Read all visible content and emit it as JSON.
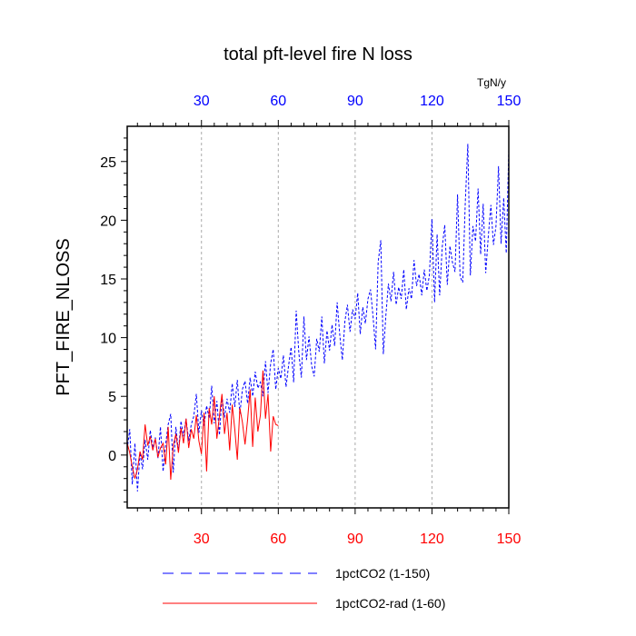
{
  "chart_data": {
    "type": "line",
    "title": "total pft-level fire N loss",
    "units": "TgN/y",
    "ylabel": "PFT_FIRE_NLOSS",
    "xlabel": "",
    "xlim": [
      1,
      150
    ],
    "ylim": [
      -4.5,
      28
    ],
    "x_ticks": [
      30,
      60,
      90,
      120,
      150
    ],
    "y_ticks": [
      0,
      5,
      10,
      15,
      20,
      25
    ],
    "grid": "vertical dashed at x ticks",
    "colors": {
      "top_axis": "#0000ff",
      "bottom_axis": "#ff0000",
      "series1": "#0000ff",
      "series2": "#ff0000"
    },
    "series": [
      {
        "name": "1pctCO2 (1-150)",
        "style": "dashed",
        "color": "#0000ff",
        "x_start": 1,
        "values": [
          0.5,
          2.2,
          -2.5,
          1.0,
          -3.1,
          0.2,
          -1.2,
          1.3,
          -0.4,
          2.1,
          0.6,
          1.5,
          -0.3,
          2.4,
          -1.4,
          0.9,
          2.6,
          3.5,
          -1.5,
          2.4,
          0.3,
          2.9,
          1.6,
          3.1,
          1.2,
          2.6,
          3.3,
          5.2,
          1.9,
          3.8,
          2.5,
          4.2,
          3.1,
          5.9,
          2.7,
          4.6,
          1.7,
          5.0,
          3.2,
          4.8,
          3.6,
          6.1,
          4.1,
          6.4,
          3.5,
          5.6,
          6.3,
          4.4,
          6.6,
          5.0,
          7.1,
          5.7,
          6.2,
          5.0,
          8.0,
          5.3,
          7.8,
          9.0,
          5.6,
          7.4,
          6.5,
          8.5,
          5.8,
          7.6,
          9.2,
          6.2,
          12.3,
          8.7,
          6.6,
          11.8,
          8.1,
          10.1,
          7.6,
          6.7,
          9.9,
          8.8,
          11.8,
          7.8,
          10.6,
          8.9,
          11.1,
          9.3,
          13.0,
          10.2,
          8.1,
          11.4,
          12.8,
          10.5,
          12.4,
          11.6,
          13.8,
          10.3,
          12.6,
          11.2,
          13.3,
          14.1,
          11.8,
          9.0,
          16.4,
          18.3,
          8.6,
          11.9,
          14.6,
          13.1,
          15.6,
          12.8,
          14.3,
          13.3,
          15.8,
          12.4,
          14.2,
          13.3,
          16.6,
          14.4,
          15.4,
          13.6,
          15.8,
          14.0,
          15.3,
          20.1,
          13.0,
          18.8,
          13.6,
          17.7,
          19.6,
          14.5,
          17.8,
          16.4,
          15.6,
          22.2,
          15.2,
          14.7,
          21.5,
          26.5,
          15.3,
          19.5,
          18.2,
          22.7,
          17.1,
          21.4,
          15.5,
          18.6,
          21.3,
          17.9,
          19.5,
          24.6,
          18.0,
          21.9,
          17.2,
          26.0
        ]
      },
      {
        "name": "1pctCO2-rad (1-60)",
        "style": "solid",
        "color": "#ff0000",
        "x_start": 1,
        "values": [
          1.0,
          0.2,
          -1.0,
          -2.0,
          -1.2,
          0.3,
          -0.4,
          2.6,
          0.8,
          1.6,
          0.4,
          1.4,
          -0.2,
          0.6,
          1.0,
          -0.8,
          2.4,
          -2.1,
          0.8,
          1.8,
          0.2,
          2.3,
          1.0,
          3.1,
          0.6,
          2.2,
          1.4,
          3.4,
          1.2,
          0.1,
          3.6,
          -1.4,
          4.0,
          2.6,
          5.0,
          1.4,
          3.3,
          5.2,
          1.8,
          3.6,
          0.4,
          4.3,
          2.2,
          -0.4,
          4.0,
          2.8,
          0.9,
          3.0,
          5.6,
          0.7,
          4.9,
          2.0,
          3.4,
          7.2,
          3.1,
          5.2,
          0.3,
          3.3,
          2.6,
          2.5
        ]
      }
    ]
  }
}
